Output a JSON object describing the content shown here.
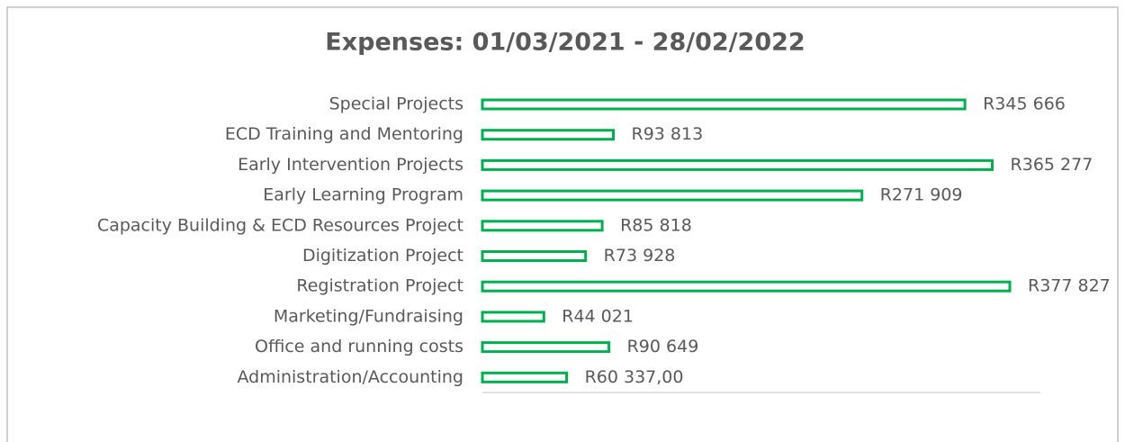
{
  "chart_data": {
    "type": "bar",
    "orientation": "horizontal",
    "title": "Expenses: 01/03/2021 - 28/02/2022",
    "categories": [
      "Special Projects",
      "ECD Training and Mentoring",
      "Early Intervention Projects",
      "Early Learning Program",
      "Capacity Building & ECD Resources Project",
      "Digitization Project",
      "Registration Project",
      "Marketing/Fundraising",
      "Office and running costs",
      "Administration/Accounting"
    ],
    "values": [
      345666,
      93813,
      365277,
      271909,
      85818,
      73928,
      377827,
      44021,
      90649,
      60337
    ],
    "value_labels": [
      "R345 666",
      "R93 813",
      "R365 277",
      "R271 909",
      "R85 818",
      "R73 928",
      "R377 827",
      "R44 021",
      "R90 649",
      "R60 337,00"
    ],
    "color": "#00b050"
  }
}
